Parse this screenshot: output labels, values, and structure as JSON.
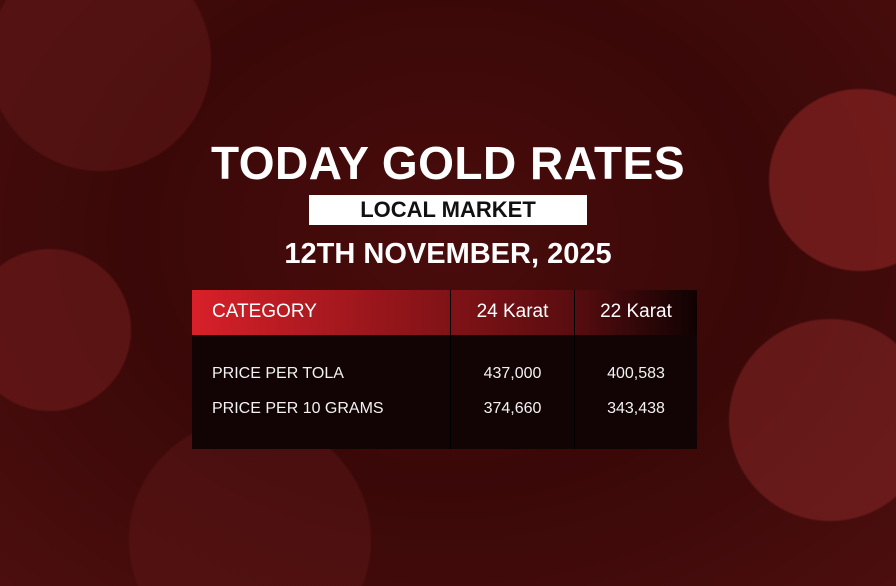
{
  "title": "TODAY GOLD RATES",
  "subtitle": "LOCAL MARKET",
  "date": "12TH NOVEMBER, 2025",
  "table": {
    "headers": [
      "CATEGORY",
      "24 Karat",
      "22 Karat"
    ],
    "rows": [
      {
        "label": "PRICE PER TOLA",
        "k24": "437,000",
        "k22": "400,583"
      },
      {
        "label": "PRICE PER 10 GRAMS",
        "k24": "374,660",
        "k22": "343,438"
      }
    ]
  },
  "colors": {
    "accent": "#d8202a",
    "background": "#3a0808"
  }
}
